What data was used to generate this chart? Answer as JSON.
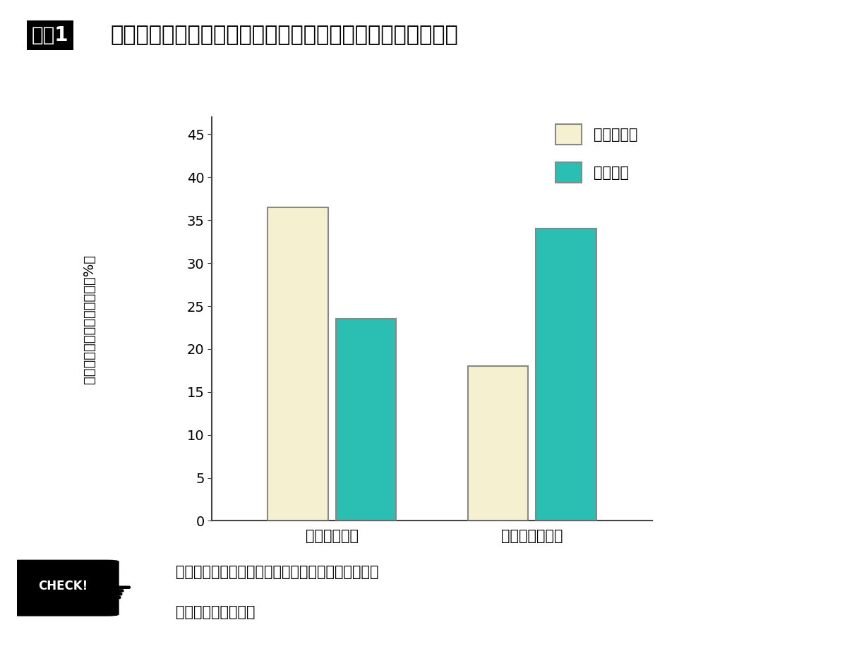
{
  "title_label": "図表1",
  "title_text": "最大筋力型と筋肥大型による筋力トレーニングの効果の比較",
  "categories": [
    "筋肉のパワー",
    "筋肉のスタミナ"
  ],
  "series": [
    {
      "name": "最大筋力型",
      "values": [
        36.5,
        18.0
      ],
      "color": "#F5F0D0",
      "edgecolor": "#888888"
    },
    {
      "name": "筋肥大型",
      "values": [
        23.5,
        34.0
      ],
      "color": "#2ABFB2",
      "edgecolor": "#888888"
    }
  ],
  "ylabel_chars": [
    "ト",
    "レ",
    "ー",
    "ニ",
    "ン",
    "グ",
    "に",
    "よ",
    "る",
    "増",
    "加",
    "率",
    "（",
    "%",
    "）"
  ],
  "ylim": [
    0,
    47
  ],
  "yticks": [
    0,
    5,
    10,
    15,
    20,
    25,
    30,
    35,
    40,
    45
  ],
  "bar_width": 0.3,
  "check_text_line1": "筋力トレーニングの方法によって、得られる効果は",
  "check_text_line2": "大きく異なります。",
  "bg_color": "#FFFFFF",
  "axis_color": "#444444",
  "tick_fontsize": 14,
  "ylabel_fontsize": 14,
  "legend_fontsize": 15,
  "xlabel_fontsize": 15,
  "title_fontsize": 22,
  "check_fontsize": 15
}
